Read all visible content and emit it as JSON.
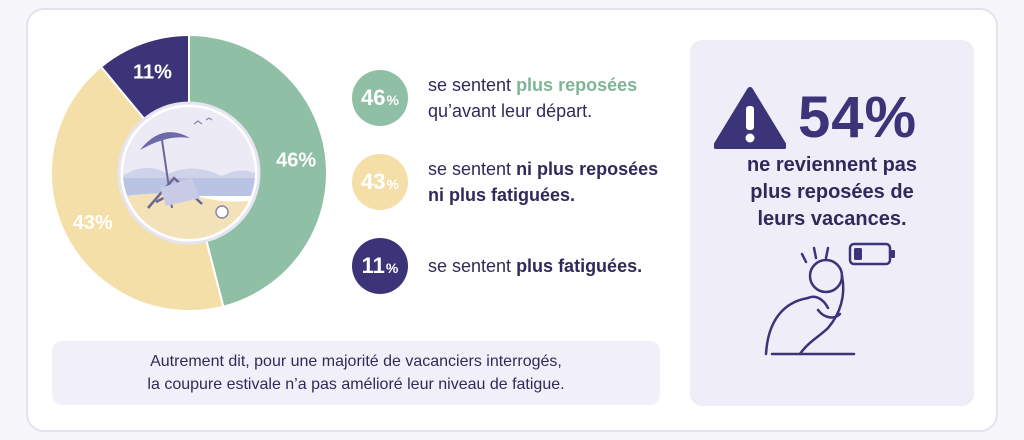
{
  "chart_data": {
    "type": "pie",
    "categories": [
      "plus reposées",
      "ni plus reposées ni plus fatiguées",
      "plus fatiguées"
    ],
    "values": [
      46,
      43,
      11
    ],
    "unit": "%",
    "colors": [
      "#8fbfa4",
      "#f5dfa8",
      "#3b3478"
    ],
    "label_colors": [
      "#ffffff",
      "#ffffff",
      "#ffffff"
    ]
  },
  "legend": [
    {
      "value": "46",
      "unit": "%",
      "prefix": "se sentent ",
      "highlight": "plus reposées",
      "line2": "qu’avant leur départ.",
      "bubble_color": "#8fbfa4",
      "highlight_color": "#7fb597"
    },
    {
      "value": "43",
      "unit": "%",
      "prefix": "se sentent ",
      "highlight": "ni plus reposées",
      "line2": "ni plus fatiguées.",
      "bubble_color": "#f5dfa8",
      "highlight_color": "#2f2a5a"
    },
    {
      "value": "11",
      "unit": "%",
      "prefix": "se sentent ",
      "highlight": "plus fatiguées.",
      "line2": "",
      "bubble_color": "#3b3478",
      "highlight_color": "#2f2a5a"
    }
  ],
  "note": {
    "line1": "Autrement dit, pour une majorité de vacanciers interrogés,",
    "line2": "la coupure estivale n’a pas amélioré leur niveau de fatigue."
  },
  "stat": {
    "value": "54%",
    "line1": "ne reviennent pas",
    "line2": "plus reposées de",
    "line3": "leurs vacances.",
    "icon": "warning-icon"
  },
  "colors": {
    "navy": "#3b3478",
    "green": "#8fbfa4",
    "yellow": "#f5dfa8",
    "text": "#2f2a5a"
  }
}
